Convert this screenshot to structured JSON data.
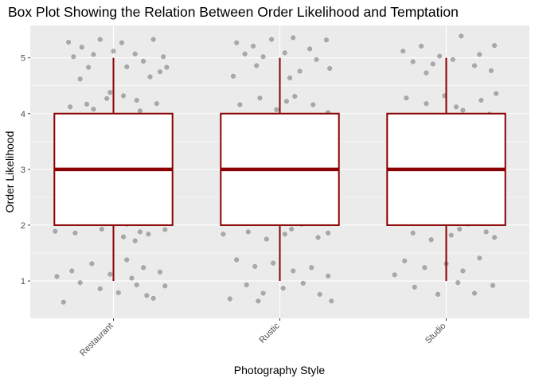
{
  "chart_data": {
    "type": "box",
    "title": "Box Plot Showing the Relation Between Order Likelihood and Temptation",
    "xlabel": "Photography Style",
    "ylabel": "Order Likelihood",
    "categories": [
      "Restaurant",
      "Rustic",
      "Studio"
    ],
    "y_ticks": [
      1,
      2,
      3,
      4,
      5
    ],
    "ylim": [
      0.33,
      5.58
    ],
    "grid": true,
    "x_tick_rotation_deg": 45,
    "colors": {
      "panel_background": "#ebebeb",
      "grid": "#ffffff",
      "box_stroke": "#8b0000",
      "box_fill": "#ffffff",
      "jitter_point": "#595959"
    },
    "boxes": [
      {
        "category": "Restaurant",
        "min": 1,
        "q1": 2,
        "median": 3,
        "q3": 4,
        "max": 5
      },
      {
        "category": "Rustic",
        "min": 1,
        "q1": 2,
        "median": 3,
        "q3": 4,
        "max": 5
      },
      {
        "category": "Studio",
        "min": 1,
        "q1": 2,
        "median": 3,
        "q3": 4,
        "max": 5
      }
    ],
    "jitter_points": {
      "Restaurant": [
        [
          -0.27,
          5.28
        ],
        [
          -0.19,
          5.19
        ],
        [
          -0.08,
          5.33
        ],
        [
          0.05,
          5.27
        ],
        [
          0.13,
          5.07
        ],
        [
          0.24,
          5.33
        ],
        [
          0.3,
          5.02
        ],
        [
          -0.24,
          5.02
        ],
        [
          -0.12,
          5.06
        ],
        [
          0.0,
          5.12
        ],
        [
          0.18,
          4.94
        ],
        [
          -0.15,
          4.83
        ],
        [
          0.28,
          4.75
        ],
        [
          -0.2,
          4.62
        ],
        [
          0.22,
          4.66
        ],
        [
          0.32,
          4.83
        ],
        [
          0.08,
          4.84
        ],
        [
          -0.26,
          4.12
        ],
        [
          -0.16,
          4.17
        ],
        [
          -0.04,
          4.27
        ],
        [
          0.06,
          4.32
        ],
        [
          0.16,
          4.05
        ],
        [
          0.26,
          4.18
        ],
        [
          -0.21,
          3.95
        ],
        [
          -0.09,
          3.86
        ],
        [
          0.02,
          3.91
        ],
        [
          0.12,
          3.74
        ],
        [
          0.22,
          3.95
        ],
        [
          -0.3,
          3.62
        ],
        [
          -0.02,
          4.38
        ],
        [
          0.14,
          4.24
        ],
        [
          0.3,
          3.88
        ],
        [
          -0.12,
          4.08
        ],
        [
          -0.27,
          3.33
        ],
        [
          -0.18,
          3.45
        ],
        [
          -0.07,
          3.24
        ],
        [
          0.03,
          3.52
        ],
        [
          0.14,
          3.31
        ],
        [
          0.25,
          3.13
        ],
        [
          -0.22,
          3.16
        ],
        [
          -0.11,
          3.38
        ],
        [
          0.07,
          3.11
        ],
        [
          0.19,
          3.41
        ],
        [
          0.3,
          3.22
        ],
        [
          -0.04,
          3.57
        ],
        [
          0.09,
          3.64
        ],
        [
          -0.26,
          2.73
        ],
        [
          -0.14,
          2.84
        ],
        [
          -0.04,
          2.68
        ],
        [
          0.07,
          2.92
        ],
        [
          0.18,
          2.81
        ],
        [
          0.28,
          2.74
        ],
        [
          -0.2,
          2.93
        ],
        [
          -0.09,
          2.62
        ],
        [
          0.02,
          2.87
        ],
        [
          0.13,
          2.66
        ],
        [
          0.24,
          2.89
        ],
        [
          -0.32,
          2.67
        ],
        [
          0.11,
          2.55
        ],
        [
          -0.16,
          2.58
        ],
        [
          0.32,
          2.79
        ],
        [
          -0.28,
          2.07
        ],
        [
          -0.17,
          2.13
        ],
        [
          -0.07,
          1.93
        ],
        [
          0.04,
          2.24
        ],
        [
          0.16,
          1.88
        ],
        [
          0.27,
          2.11
        ],
        [
          -0.23,
          1.86
        ],
        [
          -0.12,
          2.28
        ],
        [
          0.08,
          2.02
        ],
        [
          0.21,
          1.84
        ],
        [
          0.31,
          1.92
        ],
        [
          -0.35,
          1.89
        ],
        [
          0.13,
          1.72
        ],
        [
          0.06,
          1.79
        ],
        [
          -0.25,
          1.18
        ],
        [
          -0.13,
          1.31
        ],
        [
          -0.02,
          1.12
        ],
        [
          0.08,
          1.38
        ],
        [
          0.18,
          1.24
        ],
        [
          0.28,
          1.16
        ],
        [
          -0.2,
          0.97
        ],
        [
          -0.08,
          0.86
        ],
        [
          0.03,
          0.79
        ],
        [
          0.14,
          0.93
        ],
        [
          0.24,
          0.69
        ],
        [
          -0.3,
          0.62
        ],
        [
          0.31,
          0.91
        ],
        [
          -0.34,
          1.08
        ],
        [
          0.11,
          1.05
        ],
        [
          0.2,
          0.74
        ]
      ],
      "Rustic": [
        [
          -0.26,
          5.27
        ],
        [
          -0.16,
          5.21
        ],
        [
          -0.05,
          5.33
        ],
        [
          0.08,
          5.36
        ],
        [
          0.18,
          5.16
        ],
        [
          0.28,
          5.32
        ],
        [
          -0.21,
          5.07
        ],
        [
          -0.1,
          5.02
        ],
        [
          0.03,
          5.09
        ],
        [
          0.22,
          4.97
        ],
        [
          -0.14,
          4.86
        ],
        [
          0.12,
          4.76
        ],
        [
          0.3,
          4.81
        ],
        [
          -0.28,
          4.67
        ],
        [
          0.06,
          4.64
        ],
        [
          -0.24,
          4.16
        ],
        [
          -0.12,
          4.28
        ],
        [
          -0.02,
          4.07
        ],
        [
          0.09,
          4.31
        ],
        [
          0.2,
          4.16
        ],
        [
          0.29,
          4.02
        ],
        [
          -0.19,
          3.94
        ],
        [
          -0.07,
          3.87
        ],
        [
          0.04,
          4.22
        ],
        [
          0.15,
          3.81
        ],
        [
          0.26,
          3.96
        ],
        [
          -0.3,
          3.61
        ],
        [
          0.1,
          3.68
        ],
        [
          -0.26,
          3.24
        ],
        [
          -0.15,
          3.38
        ],
        [
          -0.04,
          3.16
        ],
        [
          0.07,
          3.42
        ],
        [
          0.17,
          3.28
        ],
        [
          0.28,
          3.11
        ],
        [
          -0.2,
          3.05
        ],
        [
          -0.08,
          3.56
        ],
        [
          0.12,
          3.34
        ],
        [
          0.23,
          3.48
        ],
        [
          -0.27,
          2.86
        ],
        [
          -0.17,
          2.72
        ],
        [
          -0.05,
          2.92
        ],
        [
          0.06,
          2.63
        ],
        [
          0.16,
          2.84
        ],
        [
          0.26,
          2.71
        ],
        [
          -0.21,
          2.55
        ],
        [
          -0.11,
          2.94
        ],
        [
          0.02,
          2.78
        ],
        [
          0.31,
          2.88
        ],
        [
          -0.25,
          2.22
        ],
        [
          -0.14,
          2.08
        ],
        [
          -0.03,
          2.27
        ],
        [
          0.07,
          1.93
        ],
        [
          0.18,
          2.15
        ],
        [
          0.29,
          1.86
        ],
        [
          -0.19,
          1.88
        ],
        [
          -0.08,
          1.75
        ],
        [
          0.03,
          1.84
        ],
        [
          0.13,
          2.02
        ],
        [
          0.23,
          1.78
        ],
        [
          -0.34,
          1.84
        ],
        [
          0.31,
          2.12
        ],
        [
          -0.26,
          1.38
        ],
        [
          -0.15,
          1.26
        ],
        [
          -0.04,
          1.32
        ],
        [
          0.08,
          1.18
        ],
        [
          0.19,
          1.24
        ],
        [
          0.29,
          1.09
        ],
        [
          -0.2,
          0.93
        ],
        [
          -0.1,
          0.78
        ],
        [
          0.02,
          0.87
        ],
        [
          0.14,
          0.96
        ],
        [
          0.24,
          0.76
        ],
        [
          -0.3,
          0.68
        ],
        [
          0.31,
          0.64
        ],
        [
          -0.13,
          0.64
        ]
      ],
      "Studio": [
        [
          -0.26,
          5.12
        ],
        [
          -0.15,
          5.21
        ],
        [
          -0.04,
          5.03
        ],
        [
          0.09,
          5.39
        ],
        [
          0.2,
          5.06
        ],
        [
          0.29,
          5.22
        ],
        [
          -0.2,
          4.93
        ],
        [
          -0.08,
          4.89
        ],
        [
          0.04,
          4.97
        ],
        [
          0.17,
          4.86
        ],
        [
          0.27,
          4.77
        ],
        [
          -0.12,
          4.73
        ],
        [
          -0.24,
          4.28
        ],
        [
          -0.12,
          4.18
        ],
        [
          -0.01,
          4.32
        ],
        [
          0.1,
          4.06
        ],
        [
          0.21,
          4.24
        ],
        [
          0.3,
          4.36
        ],
        [
          -0.19,
          3.96
        ],
        [
          -0.06,
          3.89
        ],
        [
          0.06,
          4.12
        ],
        [
          0.16,
          3.76
        ],
        [
          0.26,
          3.99
        ],
        [
          -0.3,
          3.88
        ],
        [
          0.13,
          3.68
        ],
        [
          -0.26,
          3.33
        ],
        [
          -0.15,
          3.17
        ],
        [
          -0.04,
          3.41
        ],
        [
          0.08,
          3.26
        ],
        [
          0.19,
          3.13
        ],
        [
          0.29,
          3.39
        ],
        [
          -0.21,
          3.06
        ],
        [
          -0.09,
          3.54
        ],
        [
          0.02,
          3.21
        ],
        [
          0.23,
          3.58
        ],
        [
          -0.25,
          2.86
        ],
        [
          -0.13,
          2.72
        ],
        [
          -0.02,
          2.92
        ],
        [
          0.1,
          2.66
        ],
        [
          0.21,
          2.83
        ],
        [
          0.3,
          2.95
        ],
        [
          -0.18,
          2.58
        ],
        [
          -0.07,
          2.77
        ],
        [
          0.05,
          2.61
        ],
        [
          0.15,
          2.88
        ],
        [
          -0.32,
          2.38
        ],
        [
          -0.26,
          2.21
        ],
        [
          -0.14,
          2.06
        ],
        [
          -0.03,
          2.17
        ],
        [
          0.08,
          1.93
        ],
        [
          0.19,
          2.12
        ],
        [
          0.29,
          1.78
        ],
        [
          -0.2,
          1.86
        ],
        [
          -0.09,
          1.74
        ],
        [
          0.03,
          1.82
        ],
        [
          0.13,
          2.02
        ],
        [
          0.24,
          1.88
        ],
        [
          -0.25,
          1.36
        ],
        [
          -0.13,
          1.24
        ],
        [
          0.0,
          1.31
        ],
        [
          0.1,
          1.18
        ],
        [
          0.2,
          1.41
        ],
        [
          -0.19,
          0.89
        ],
        [
          -0.05,
          0.76
        ],
        [
          0.07,
          0.97
        ],
        [
          0.17,
          0.78
        ],
        [
          -0.31,
          1.11
        ],
        [
          0.28,
          0.92
        ]
      ]
    }
  }
}
